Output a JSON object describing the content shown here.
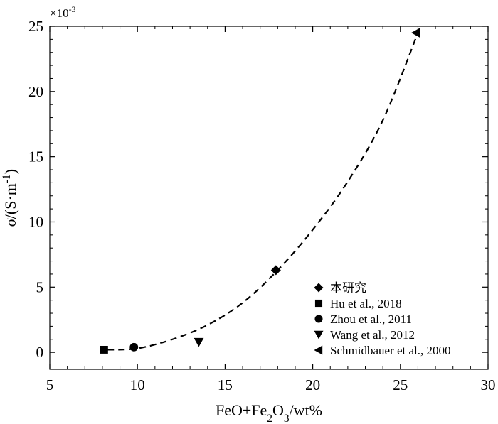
{
  "chart_data": {
    "type": "scatter",
    "xlabel": {
      "parts": [
        {
          "text": "FeO+Fe",
          "style": "normal"
        },
        {
          "text": "2",
          "style": "sub"
        },
        {
          "text": "O",
          "style": "normal"
        },
        {
          "text": "3",
          "style": "sub"
        },
        {
          "text": "/wt%",
          "style": "normal"
        }
      ]
    },
    "ylabel": {
      "parts": [
        {
          "text": "σ",
          "style": "italic"
        },
        {
          "text": "/(S·m",
          "style": "normal"
        },
        {
          "text": "-1",
          "style": "sup"
        },
        {
          "text": ")",
          "style": "normal"
        }
      ]
    },
    "y_multiplier": {
      "base": "×10",
      "exp": "-3"
    },
    "xlim": [
      5,
      30
    ],
    "ylim": [
      -1.3,
      25
    ],
    "xticks": [
      5,
      10,
      15,
      20,
      25,
      30
    ],
    "yticks": [
      0,
      5,
      10,
      15,
      20,
      25
    ],
    "grid": false,
    "legend_position": "bottom-right",
    "series": [
      {
        "name": "本研究",
        "marker": "diamond",
        "points": [
          {
            "x": 17.9,
            "y": 6.3
          }
        ]
      },
      {
        "name": "Hu et al., 2018",
        "marker": "square",
        "points": [
          {
            "x": 8.1,
            "y": 0.2
          }
        ]
      },
      {
        "name": "Zhou et al., 2011",
        "marker": "circle",
        "points": [
          {
            "x": 9.8,
            "y": 0.4
          }
        ]
      },
      {
        "name": "Wang et al., 2012",
        "marker": "triangle-down",
        "points": [
          {
            "x": 13.5,
            "y": 0.8
          }
        ]
      },
      {
        "name": "Schmidbauer et al., 2000",
        "marker": "triangle-left",
        "points": [
          {
            "x": 25.9,
            "y": 24.5
          }
        ]
      }
    ],
    "fit_curve": {
      "style": "dashed",
      "points": [
        {
          "x": 8.3,
          "y": 0.2
        },
        {
          "x": 10.0,
          "y": 0.3
        },
        {
          "x": 12.0,
          "y": 1.0
        },
        {
          "x": 14.0,
          "y": 2.1
        },
        {
          "x": 16.0,
          "y": 3.8
        },
        {
          "x": 18.0,
          "y": 6.3
        },
        {
          "x": 20.0,
          "y": 9.4
        },
        {
          "x": 22.0,
          "y": 13.1
        },
        {
          "x": 24.0,
          "y": 17.8
        },
        {
          "x": 26.0,
          "y": 24.5
        }
      ]
    }
  }
}
